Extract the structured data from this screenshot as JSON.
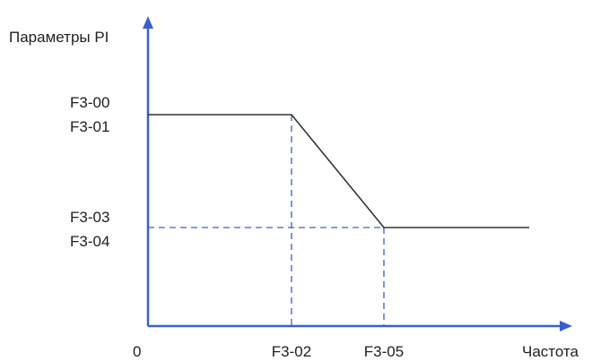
{
  "chart_data": {
    "type": "line",
    "ylabel": "Параметры PI",
    "xlabel": "Частота",
    "origin_label": "0",
    "y_tick_groups": [
      {
        "lines": [
          "F3-00",
          "F3-01"
        ],
        "level": "high"
      },
      {
        "lines": [
          "F3-03",
          "F3-04"
        ],
        "level": "low"
      }
    ],
    "x_ticks": [
      {
        "label": "F3-02",
        "breakpoint": 1
      },
      {
        "label": "F3-05",
        "breakpoint": 2
      }
    ],
    "series": [
      {
        "points": [
          {
            "x": "0",
            "y": "high"
          },
          {
            "x": "F3-02",
            "y": "high"
          },
          {
            "x": "F3-05",
            "y": "low"
          },
          {
            "x": "max",
            "y": "low"
          }
        ]
      }
    ],
    "guides": "dashed",
    "colors": {
      "line": "#333333",
      "guide": "#3a5fcd",
      "axis": "#3a5fcd",
      "text": "#1f1f1f"
    }
  }
}
